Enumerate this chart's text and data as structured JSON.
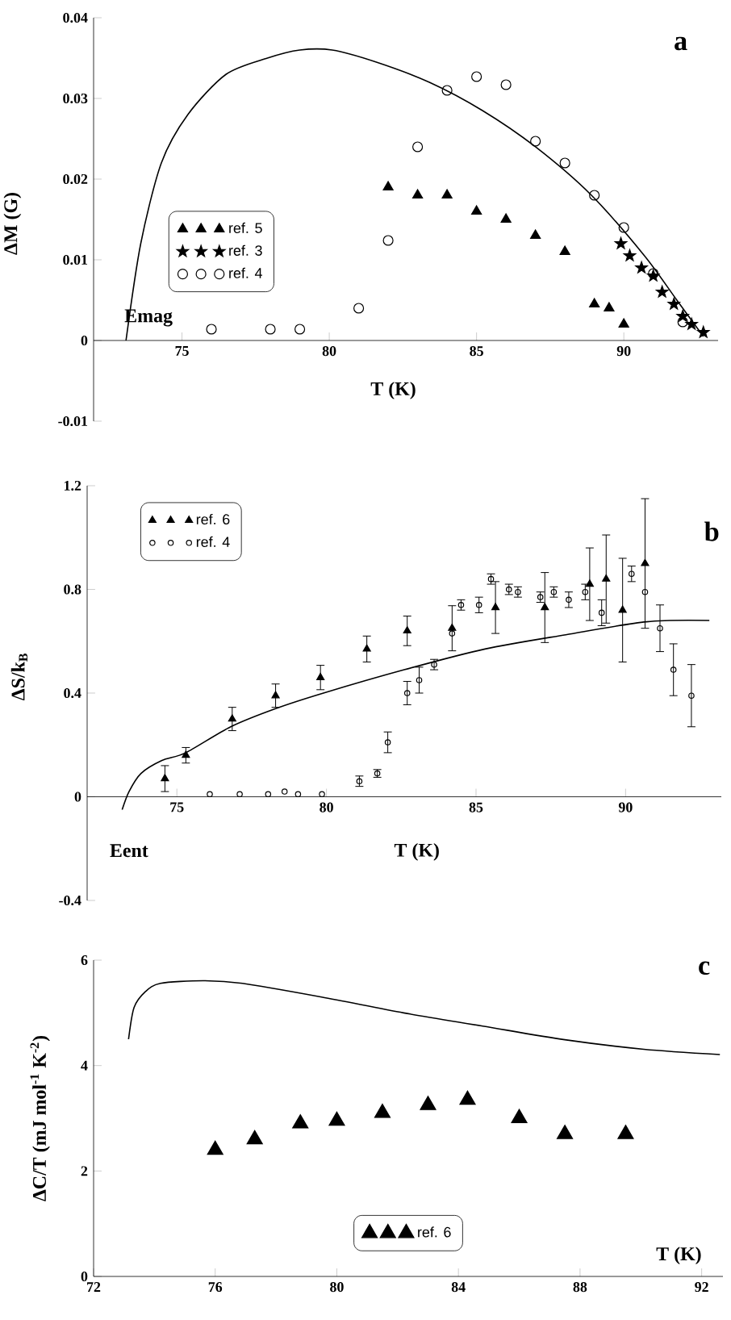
{
  "chart_data": [
    {
      "type": "scatter",
      "title": "a",
      "xlabel": "T (K)",
      "ylabel": "ΔM (G)",
      "annotations": [
        "Emag"
      ],
      "xlim": [
        72,
        93.2
      ],
      "ylim": [
        -0.01,
        0.04
      ],
      "xticks": [
        75,
        80,
        85,
        90
      ],
      "yticks": [
        -0.01,
        0,
        0.01,
        0.02,
        0.03,
        0.04
      ],
      "legend": "left",
      "series": [
        {
          "type": "line",
          "color": "#000000",
          "x": [
            73.1,
            73.6,
            74.3,
            75.2,
            76.5,
            77.9,
            79.0,
            80.1,
            81.6,
            83.4,
            85.2,
            87.0,
            88.9,
            90.7,
            91.8,
            92.7
          ],
          "values": [
            0,
            0.012,
            0.022,
            0.028,
            0.033,
            0.035,
            0.036,
            0.036,
            0.0345,
            0.032,
            0.0285,
            0.024,
            0.018,
            0.0105,
            0.005,
            0.0005
          ]
        },
        {
          "name": "ref. 5",
          "color": "#000000",
          "marker": "triangle",
          "x": [
            82,
            83,
            84,
            85,
            86,
            87,
            88,
            89,
            89.5,
            90
          ],
          "values": [
            0.019,
            0.018,
            0.018,
            0.016,
            0.015,
            0.013,
            0.011,
            0.0045,
            0.004,
            0.002
          ]
        },
        {
          "name": "ref. 3",
          "color": "#000000",
          "marker": "star",
          "x": [
            89.9,
            90.2,
            90.6,
            91.0,
            91.3,
            91.7,
            92.0,
            92.3,
            92.7
          ],
          "values": [
            0.012,
            0.0105,
            0.009,
            0.008,
            0.006,
            0.0045,
            0.003,
            0.002,
            0.001
          ]
        },
        {
          "name": "ref. 4",
          "color": "#000000",
          "marker": "circle",
          "x": [
            76,
            78,
            79,
            81,
            82,
            83,
            84,
            85,
            86,
            87,
            88,
            89,
            90,
            91,
            92
          ],
          "values": [
            0.0014,
            0.0014,
            0.0014,
            0.004,
            0.0124,
            0.024,
            0.031,
            0.0327,
            0.0317,
            0.0247,
            0.022,
            0.018,
            0.014,
            0.0083,
            0.0023
          ]
        }
      ]
    },
    {
      "type": "scatter",
      "title": "b",
      "xlabel": "T (K)",
      "ylabel": "ΔS/k$_{B}$",
      "annotations": [
        "Eent"
      ],
      "xlim": [
        72,
        93.2
      ],
      "ylim": [
        -0.4,
        1.2
      ],
      "xticks": [
        75,
        80,
        85,
        90
      ],
      "yticks": [
        -0.4,
        0,
        0.4,
        0.8,
        1.2
      ],
      "legend": "top left",
      "series": [
        {
          "type": "line",
          "color": "#000000",
          "x": [
            73.17,
            73.4,
            73.8,
            74.5,
            75.3,
            76.8,
            78.3,
            79.9,
            82.6,
            85.3,
            88.0,
            90.7,
            92.8
          ],
          "values": [
            -0.05,
            0.02,
            0.09,
            0.14,
            0.17,
            0.27,
            0.34,
            0.4,
            0.49,
            0.57,
            0.625,
            0.675,
            0.68
          ]
        },
        {
          "name": "ref. 6",
          "color": "#000000",
          "marker": "triangle",
          "x": [
            74.6,
            75.3,
            76.85,
            78.3,
            79.8,
            81.35,
            82.7,
            84.2,
            85.65,
            87.3,
            88.8,
            89.35,
            89.9,
            90.65
          ],
          "values": [
            0.07,
            0.16,
            0.3,
            0.39,
            0.46,
            0.57,
            0.64,
            0.65,
            0.73,
            0.73,
            0.82,
            0.84,
            0.72,
            0.9
          ],
          "errors": [
            0.05,
            0.03,
            0.045,
            0.045,
            0.047,
            0.05,
            0.057,
            0.087,
            0.1,
            0.135,
            0.14,
            0.17,
            0.2,
            0.25
          ]
        },
        {
          "name": "ref. 4",
          "color": "#000000",
          "marker": "circle",
          "x": [
            76.1,
            77.1,
            78.05,
            78.6,
            79.05,
            79.85,
            81.1,
            81.7,
            82.05,
            82.7,
            83.1,
            83.6,
            84.2,
            84.5,
            85.1,
            85.5,
            86.1,
            86.4,
            87.15,
            87.6,
            88.1,
            88.65,
            89.2,
            90.2,
            90.65,
            91.15,
            91.6,
            92.2
          ],
          "values": [
            0.01,
            0.01,
            0.01,
            0.02,
            0.01,
            0.01,
            0.06,
            0.09,
            0.21,
            0.4,
            0.45,
            0.51,
            0.63,
            0.74,
            0.74,
            0.84,
            0.8,
            0.79,
            0.77,
            0.79,
            0.76,
            0.79,
            0.71,
            0.86,
            0.79,
            0.65,
            0.49,
            0.39
          ],
          "errors": [
            null,
            null,
            null,
            null,
            null,
            null,
            0.02,
            0.015,
            0.04,
            0.045,
            0.05,
            0.02,
            null,
            0.02,
            0.03,
            0.02,
            0.02,
            0.02,
            0.02,
            0.02,
            0.03,
            0.03,
            0.05,
            0.03,
            null,
            0.09,
            0.1,
            0.12
          ]
        }
      ]
    },
    {
      "type": "scatter",
      "title": "c",
      "xlabel": "T (K)",
      "ylabel": "ΔC/T (mJ mol$^{-1}$ K$^{-2}$)",
      "xlim": [
        72,
        92.7
      ],
      "ylim": [
        0,
        6
      ],
      "xticks": [
        72,
        76,
        80,
        84,
        88,
        92
      ],
      "yticks": [
        0,
        2,
        4,
        6
      ],
      "legend": "bottom",
      "series": [
        {
          "type": "line",
          "color": "#000000",
          "x": [
            73.15,
            73.33,
            73.7,
            74.2,
            75.6,
            76.9,
            79.5,
            82.2,
            84.8,
            87.5,
            90.1,
            92.6
          ],
          "values": [
            4.5,
            5.1,
            5.4,
            5.56,
            5.61,
            5.56,
            5.3,
            5.0,
            4.75,
            4.49,
            4.31,
            4.21
          ]
        },
        {
          "name": "ref. 6",
          "color": "#000000",
          "marker": "triangle",
          "x": [
            76,
            77.3,
            78.8,
            80,
            81.5,
            83,
            84.3,
            86,
            87.5,
            89.5
          ],
          "values": [
            2.4,
            2.6,
            2.9,
            2.95,
            3.1,
            3.25,
            3.35,
            3.0,
            2.7,
            2.7
          ]
        }
      ]
    }
  ]
}
